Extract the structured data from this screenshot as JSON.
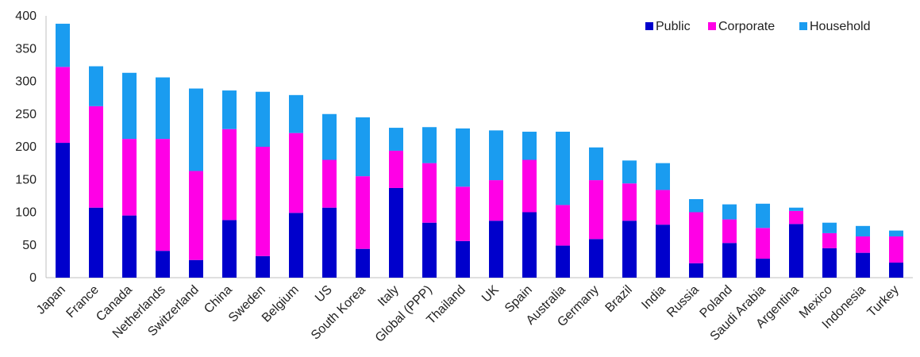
{
  "chart_data": {
    "type": "bar",
    "stacked": true,
    "categories": [
      "Japan",
      "France",
      "Canada",
      "Netherlands",
      "Switzerland",
      "China",
      "Sweden",
      "Belgium",
      "US",
      "South Korea",
      "Italy",
      "Global (PPP)",
      "Thailand",
      "UK",
      "Spain",
      "Australia",
      "Germany",
      "Brazil",
      "India",
      "Russia",
      "Poland",
      "Saudi Arabia",
      "Argentina",
      "Mexico",
      "Indonesia",
      "Turkey"
    ],
    "series": [
      {
        "name": "Public",
        "color": "#0000CC",
        "values": [
          206,
          107,
          95,
          41,
          27,
          88,
          33,
          99,
          107,
          44,
          137,
          84,
          56,
          87,
          100,
          49,
          59,
          87,
          81,
          22,
          53,
          29,
          82,
          45,
          38,
          23
        ]
      },
      {
        "name": "Corporate",
        "color": "#FF00E6",
        "values": [
          116,
          155,
          117,
          171,
          136,
          139,
          167,
          122,
          73,
          111,
          57,
          91,
          83,
          62,
          80,
          62,
          90,
          57,
          53,
          78,
          36,
          47,
          20,
          23,
          25,
          40
        ]
      },
      {
        "name": "Household",
        "color": "#1A9CF0",
        "values": [
          66,
          61,
          101,
          94,
          126,
          59,
          84,
          58,
          70,
          90,
          35,
          55,
          89,
          76,
          43,
          112,
          50,
          35,
          41,
          20,
          23,
          37,
          5,
          16,
          16,
          9
        ]
      }
    ],
    "ylim": [
      0,
      400
    ],
    "yticks": [
      0,
      50,
      100,
      150,
      200,
      250,
      300,
      350,
      400
    ],
    "legend_position": "top-right",
    "grid": false
  }
}
